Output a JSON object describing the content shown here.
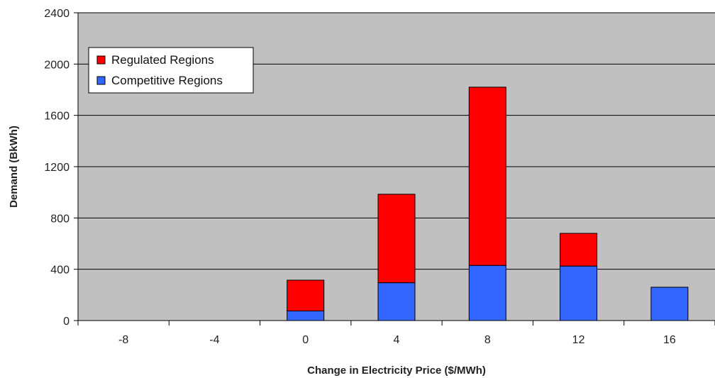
{
  "chart_data": {
    "type": "bar",
    "stacked": true,
    "title": "",
    "xlabel": "Change in Electricity Price ($/MWh)",
    "ylabel": "Demand (BkWh)",
    "categories": [
      "-8",
      "-4",
      "0",
      "4",
      "8",
      "12",
      "16"
    ],
    "ylim": [
      0,
      2400
    ],
    "yticks": [
      "0",
      "400",
      "800",
      "1200",
      "1600",
      "2000",
      "2400"
    ],
    "grid": true,
    "legend_position": "top-left",
    "series": [
      {
        "name": "Competitive Regions",
        "color": "#3366ff",
        "values": [
          0,
          0,
          75,
          295,
          430,
          425,
          260
        ]
      },
      {
        "name": "Regulated Regions",
        "color": "#ff0000",
        "values": [
          0,
          0,
          240,
          690,
          1390,
          255,
          0
        ]
      }
    ],
    "plot_background": "#c0c0c0"
  }
}
